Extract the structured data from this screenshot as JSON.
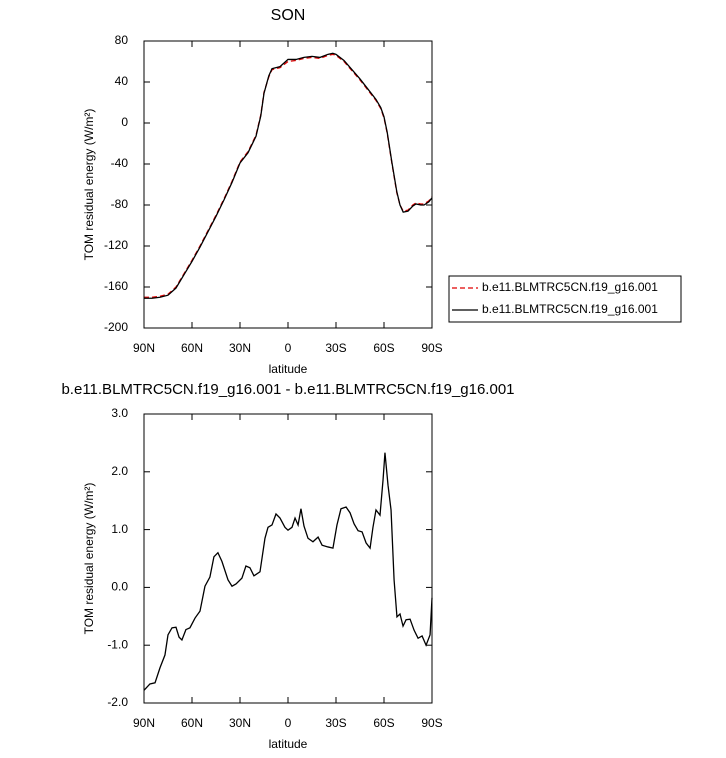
{
  "chart_data": [
    {
      "type": "line",
      "title": "SON",
      "xlabel": "latitude",
      "ylabel": "TOM residual energy (W/m²)",
      "xlim": [
        90,
        -90
      ],
      "xticks": [
        {
          "value": 90,
          "label": "90N"
        },
        {
          "value": 60,
          "label": "60N"
        },
        {
          "value": 30,
          "label": "30N"
        },
        0,
        {
          "value": -30,
          "label": "30S"
        },
        {
          "value": -60,
          "label": "60S"
        },
        {
          "value": -90,
          "label": "90S"
        }
      ],
      "ylim": [
        -200,
        80
      ],
      "yticks": [
        80,
        40,
        0,
        -40,
        -80,
        -120,
        -160,
        -200
      ],
      "legend": "right",
      "x": [
        90,
        85,
        80,
        75,
        70,
        65,
        60,
        55,
        50,
        45,
        40,
        35,
        30,
        25,
        20,
        17,
        15,
        12,
        10,
        5,
        0,
        -5,
        -10,
        -15,
        -20,
        -25,
        -28,
        -30,
        -35,
        -40,
        -45,
        -50,
        -55,
        -58,
        -60,
        -62,
        -65,
        -68,
        -70,
        -72,
        -75,
        -78,
        -80,
        -83,
        -85,
        -88,
        -90
      ],
      "series": [
        {
          "name": "b.e11.BLMTRC5CN.f19_g16.001",
          "color": "#e00000",
          "dash": true,
          "values": [
            -170,
            -170,
            -169,
            -167,
            -160,
            -147,
            -134,
            -120,
            -105,
            -90,
            -74,
            -57,
            -38,
            -28,
            -12,
            8,
            30,
            45,
            52,
            54,
            60,
            61,
            63,
            64,
            63,
            66,
            67,
            66,
            60,
            51,
            42,
            32,
            22,
            14,
            5,
            -10,
            -40,
            -68,
            -80,
            -86,
            -85,
            -80,
            -78,
            -79,
            -79,
            -76,
            -72
          ]
        },
        {
          "name": "b.e11.BLMTRC5CN.f19_g16.001",
          "color": "#000000",
          "dash": false,
          "values": [
            -171,
            -171,
            -170,
            -168,
            -161,
            -148,
            -135,
            -121,
            -106,
            -91,
            -75,
            -58,
            -39,
            -29,
            -13,
            7,
            29,
            46,
            53,
            55,
            62,
            62,
            64,
            65,
            64,
            67,
            68,
            67,
            61,
            52,
            43,
            33,
            23,
            15,
            6,
            -9,
            -39,
            -67,
            -80,
            -87,
            -86,
            -81,
            -79,
            -80,
            -80,
            -77,
            -73
          ]
        }
      ]
    },
    {
      "type": "line",
      "title": "b.e11.BLMTRC5CN.f19_g16.001 - b.e11.BLMTRC5CN.f19_g16.001",
      "xlabel": "latitude",
      "ylabel": "TOM residual energy (W/m²)",
      "xlim": [
        90,
        -90
      ],
      "xticks": [
        {
          "value": 90,
          "label": "90N"
        },
        {
          "value": 60,
          "label": "60N"
        },
        {
          "value": 30,
          "label": "30N"
        },
        0,
        {
          "value": -30,
          "label": "30S"
        },
        {
          "value": -60,
          "label": "60S"
        },
        {
          "value": -90,
          "label": "90S"
        }
      ],
      "ylim": [
        -2,
        3
      ],
      "yticks": [
        {
          "value": 3,
          "label": "3.0"
        },
        {
          "value": 2,
          "label": "2.0"
        },
        {
          "value": 1,
          "label": "1.0"
        },
        {
          "value": 0,
          "label": "0.0"
        },
        {
          "value": -1,
          "label": "-1.0"
        },
        {
          "value": -2,
          "label": "-2.0"
        }
      ],
      "x": [
        90,
        86.3,
        83.1,
        80,
        76.9,
        75,
        72.5,
        70,
        68.1,
        66.3,
        63.8,
        61.3,
        58.1,
        55,
        51.9,
        48.8,
        46.3,
        43.8,
        41.3,
        37.5,
        35,
        32.5,
        28.8,
        26.3,
        23.8,
        21.3,
        17.5,
        14.4,
        12.5,
        10,
        7.5,
        5,
        1.9,
        0,
        -2.5,
        -4.4,
        -6.3,
        -8.1,
        -10,
        -12.5,
        -15.6,
        -18.8,
        -21.3,
        -25,
        -28.1,
        -30.6,
        -33.1,
        -36.3,
        -38.8,
        -41.3,
        -43.8,
        -46.3,
        -48.8,
        -51.3,
        -53.1,
        -55,
        -57.5,
        -59.4,
        -60.6,
        -62.5,
        -64.4,
        -66.3,
        -68.1,
        -70,
        -71.9,
        -73.8,
        -76.3,
        -78.8,
        -81.3,
        -83.8,
        -86.3,
        -88.8,
        -90
      ],
      "series": [
        {
          "color": "#000000",
          "dash": false,
          "values": [
            -1.78,
            -1.67,
            -1.65,
            -1.39,
            -1.17,
            -0.82,
            -0.7,
            -0.69,
            -0.86,
            -0.91,
            -0.73,
            -0.7,
            -0.53,
            -0.41,
            0.02,
            0.18,
            0.53,
            0.6,
            0.45,
            0.13,
            0.02,
            0.06,
            0.16,
            0.37,
            0.34,
            0.2,
            0.27,
            0.85,
            1.04,
            1.08,
            1.27,
            1.2,
            1.04,
            0.99,
            1.04,
            1.2,
            1.08,
            1.36,
            1.06,
            0.85,
            0.79,
            0.87,
            0.73,
            0.7,
            0.68,
            1.08,
            1.36,
            1.39,
            1.29,
            1.1,
            0.98,
            0.96,
            0.77,
            0.68,
            1.04,
            1.34,
            1.25,
            1.86,
            2.33,
            1.77,
            1.34,
            0.13,
            -0.51,
            -0.46,
            -0.67,
            -0.56,
            -0.55,
            -0.74,
            -0.88,
            -0.84,
            -1.0,
            -0.82,
            -0.18
          ]
        }
      ]
    }
  ]
}
